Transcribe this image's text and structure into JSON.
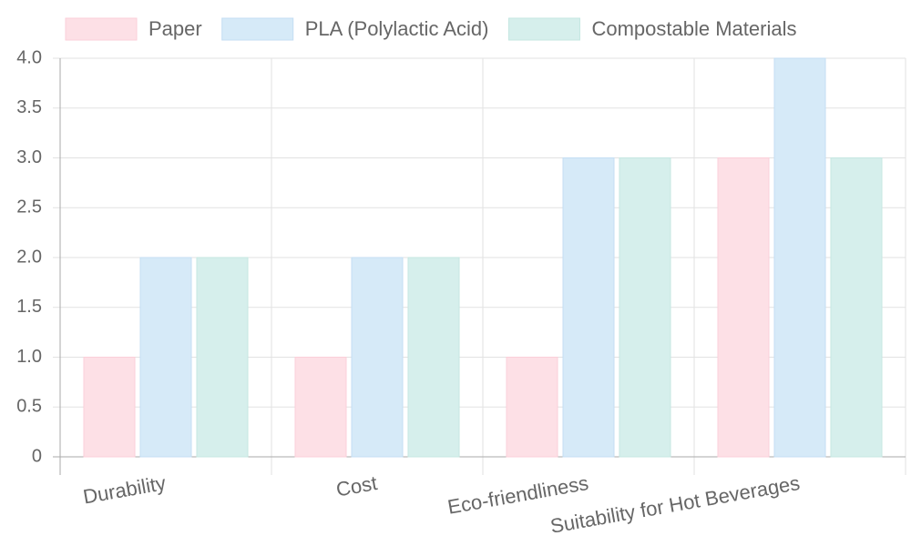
{
  "chart_data": {
    "type": "bar",
    "categories": [
      "Durability",
      "Cost",
      "Eco-friendliness",
      "Suitability for Hot Beverages"
    ],
    "series": [
      {
        "name": "Paper",
        "color": "#fde0e6",
        "border": "#fbcfd9",
        "values": [
          1,
          1,
          1,
          3
        ]
      },
      {
        "name": "PLA (Polylactic Acid)",
        "color": "#d6eaf8",
        "border": "#c4def3",
        "values": [
          2,
          2,
          3,
          4
        ]
      },
      {
        "name": "Compostable Materials",
        "color": "#d6efec",
        "border": "#c5e7e2",
        "values": [
          2,
          2,
          3,
          3
        ]
      }
    ],
    "ylim": [
      0,
      4
    ],
    "yticks": [
      0,
      0.5,
      {
        "value": 1,
        "label": "1.0"
      },
      1.5,
      {
        "value": 2,
        "label": "2.0"
      },
      2.5,
      {
        "value": 3,
        "label": "3.0"
      },
      3.5,
      {
        "value": 4,
        "label": "4.0"
      }
    ],
    "grid": true,
    "legend": "top"
  }
}
